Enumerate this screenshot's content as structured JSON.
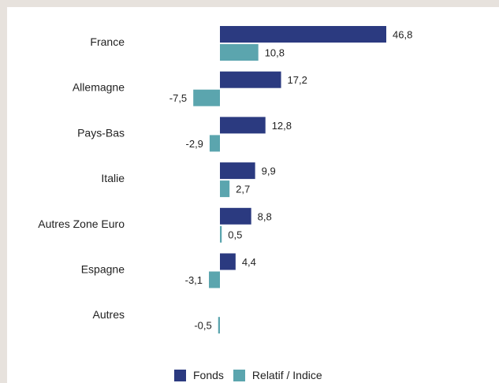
{
  "chart_data": {
    "type": "bar",
    "orientation": "horizontal",
    "categories": [
      "France",
      "Allemagne",
      "Pays-Bas",
      "Italie",
      "Autres Zone Euro",
      "Espagne",
      "Autres"
    ],
    "series": [
      {
        "name": "Fonds",
        "color": "#2b3a80",
        "values": [
          46.8,
          17.2,
          12.8,
          9.9,
          8.8,
          4.4,
          null
        ],
        "labels": [
          "46,8",
          "17,2",
          "12,8",
          "9,9",
          "8,8",
          "4,4",
          ""
        ]
      },
      {
        "name": "Relatif / Indice",
        "color": "#5ba5ae",
        "values": [
          10.8,
          -7.5,
          -2.9,
          2.7,
          0.5,
          -3.1,
          -0.5
        ],
        "labels": [
          "10,8",
          "-7,5",
          "-2,9",
          "2,7",
          "0,5",
          "-3,1",
          "-0,5"
        ]
      }
    ],
    "legend_position": "bottom",
    "grid": false
  }
}
